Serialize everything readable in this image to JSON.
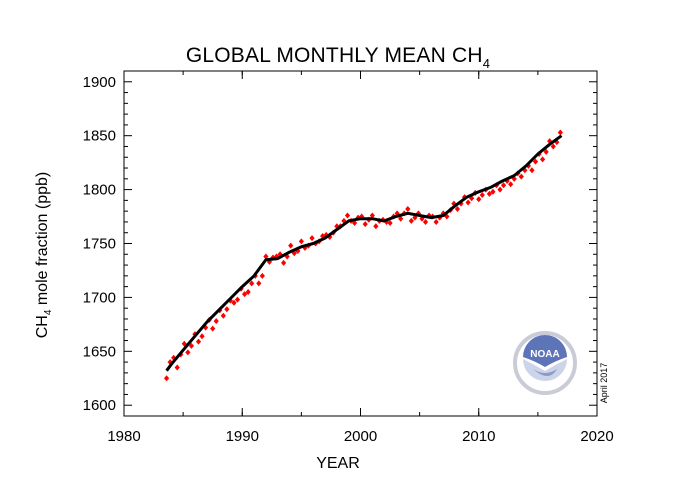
{
  "chart_data": {
    "type": "line",
    "title_main": "GLOBAL MONTHLY MEAN CH",
    "title_sub": "4",
    "xlabel": "YEAR",
    "ylabel_pre": "CH",
    "ylabel_sub": "4",
    "ylabel_post": " mole fraction (ppb)",
    "xlim": [
      1980,
      2020
    ],
    "ylim": [
      1590,
      1910
    ],
    "xticks": [
      "1980",
      "1990",
      "2000",
      "2010",
      "2020"
    ],
    "yticks": [
      "1600",
      "1650",
      "1700",
      "1750",
      "1800",
      "1850",
      "1900"
    ],
    "credit": "April 2017",
    "logo_text": "NOAA",
    "colors": {
      "monthly": "#ff0000",
      "trend": "#000000"
    },
    "series": [
      {
        "name": "monthly mean",
        "style": "red diamond markers",
        "x": [
          1983.6,
          1983.9,
          1984.2,
          1984.5,
          1984.8,
          1985.1,
          1985.4,
          1985.7,
          1986.0,
          1986.3,
          1986.6,
          1986.9,
          1987.2,
          1987.5,
          1987.8,
          1988.1,
          1988.4,
          1988.7,
          1989.0,
          1989.3,
          1989.6,
          1989.9,
          1990.2,
          1990.5,
          1990.8,
          1991.1,
          1991.4,
          1991.7,
          1992.0,
          1992.3,
          1992.6,
          1992.9,
          1993.2,
          1993.5,
          1993.8,
          1994.1,
          1994.4,
          1994.7,
          1995.0,
          1995.3,
          1995.6,
          1995.9,
          1996.2,
          1996.5,
          1996.8,
          1997.1,
          1997.4,
          1997.7,
          1998.0,
          1998.3,
          1998.6,
          1998.9,
          1999.2,
          1999.5,
          1999.8,
          2000.1,
          2000.4,
          2000.7,
          2001.0,
          2001.3,
          2001.6,
          2001.9,
          2002.2,
          2002.5,
          2002.8,
          2003.1,
          2003.4,
          2003.7,
          2004.0,
          2004.3,
          2004.6,
          2004.9,
          2005.2,
          2005.5,
          2005.8,
          2006.1,
          2006.4,
          2006.7,
          2007.0,
          2007.3,
          2007.6,
          2007.9,
          2008.2,
          2008.5,
          2008.8,
          2009.1,
          2009.4,
          2009.7,
          2010.0,
          2010.3,
          2010.6,
          2010.9,
          2011.2,
          2011.5,
          2011.8,
          2012.1,
          2012.4,
          2012.7,
          2013.0,
          2013.3,
          2013.6,
          2013.9,
          2014.2,
          2014.5,
          2014.8,
          2015.1,
          2015.4,
          2015.7,
          2016.0,
          2016.3,
          2016.6,
          2016.9
        ],
        "y": [
          1625,
          1640,
          1644,
          1635,
          1647,
          1657,
          1649,
          1655,
          1666,
          1659,
          1664,
          1672,
          1679,
          1671,
          1678,
          1688,
          1683,
          1689,
          1697,
          1695,
          1698,
          1708,
          1703,
          1705,
          1713,
          1720,
          1713,
          1720,
          1738,
          1733,
          1737,
          1738,
          1740,
          1732,
          1738,
          1748,
          1741,
          1743,
          1752,
          1746,
          1748,
          1755,
          1750,
          1752,
          1757,
          1758,
          1756,
          1760,
          1766,
          1766,
          1771,
          1776,
          1771,
          1769,
          1774,
          1775,
          1768,
          1772,
          1776,
          1766,
          1771,
          1772,
          1770,
          1769,
          1775,
          1778,
          1773,
          1778,
          1782,
          1771,
          1774,
          1778,
          1773,
          1770,
          1776,
          1775,
          1770,
          1774,
          1778,
          1775,
          1781,
          1787,
          1782,
          1787,
          1793,
          1788,
          1792,
          1797,
          1791,
          1795,
          1800,
          1796,
          1798,
          1804,
          1800,
          1804,
          1808,
          1805,
          1810,
          1815,
          1812,
          1818,
          1822,
          1818,
          1826,
          1833,
          1828,
          1835,
          1845,
          1840,
          1844,
          1853
        ]
      },
      {
        "name": "trend",
        "style": "black line",
        "x": [
          1983.6,
          1984,
          1985,
          1986,
          1987,
          1988,
          1989,
          1990,
          1991,
          1992,
          1993,
          1994,
          1995,
          1996,
          1997,
          1998,
          1999,
          2000,
          2001,
          2002,
          2003,
          2004,
          2005,
          2006,
          2007,
          2008,
          2009,
          2010,
          2011,
          2012,
          2013,
          2014,
          2015,
          2016,
          2017
        ],
        "y": [
          1632,
          1638,
          1651,
          1664,
          1677,
          1688,
          1699,
          1710,
          1720,
          1735,
          1736,
          1742,
          1747,
          1750,
          1755,
          1763,
          1771,
          1773,
          1773,
          1771,
          1775,
          1778,
          1776,
          1774,
          1776,
          1785,
          1793,
          1798,
          1802,
          1808,
          1813,
          1822,
          1833,
          1842,
          1850
        ]
      }
    ]
  }
}
